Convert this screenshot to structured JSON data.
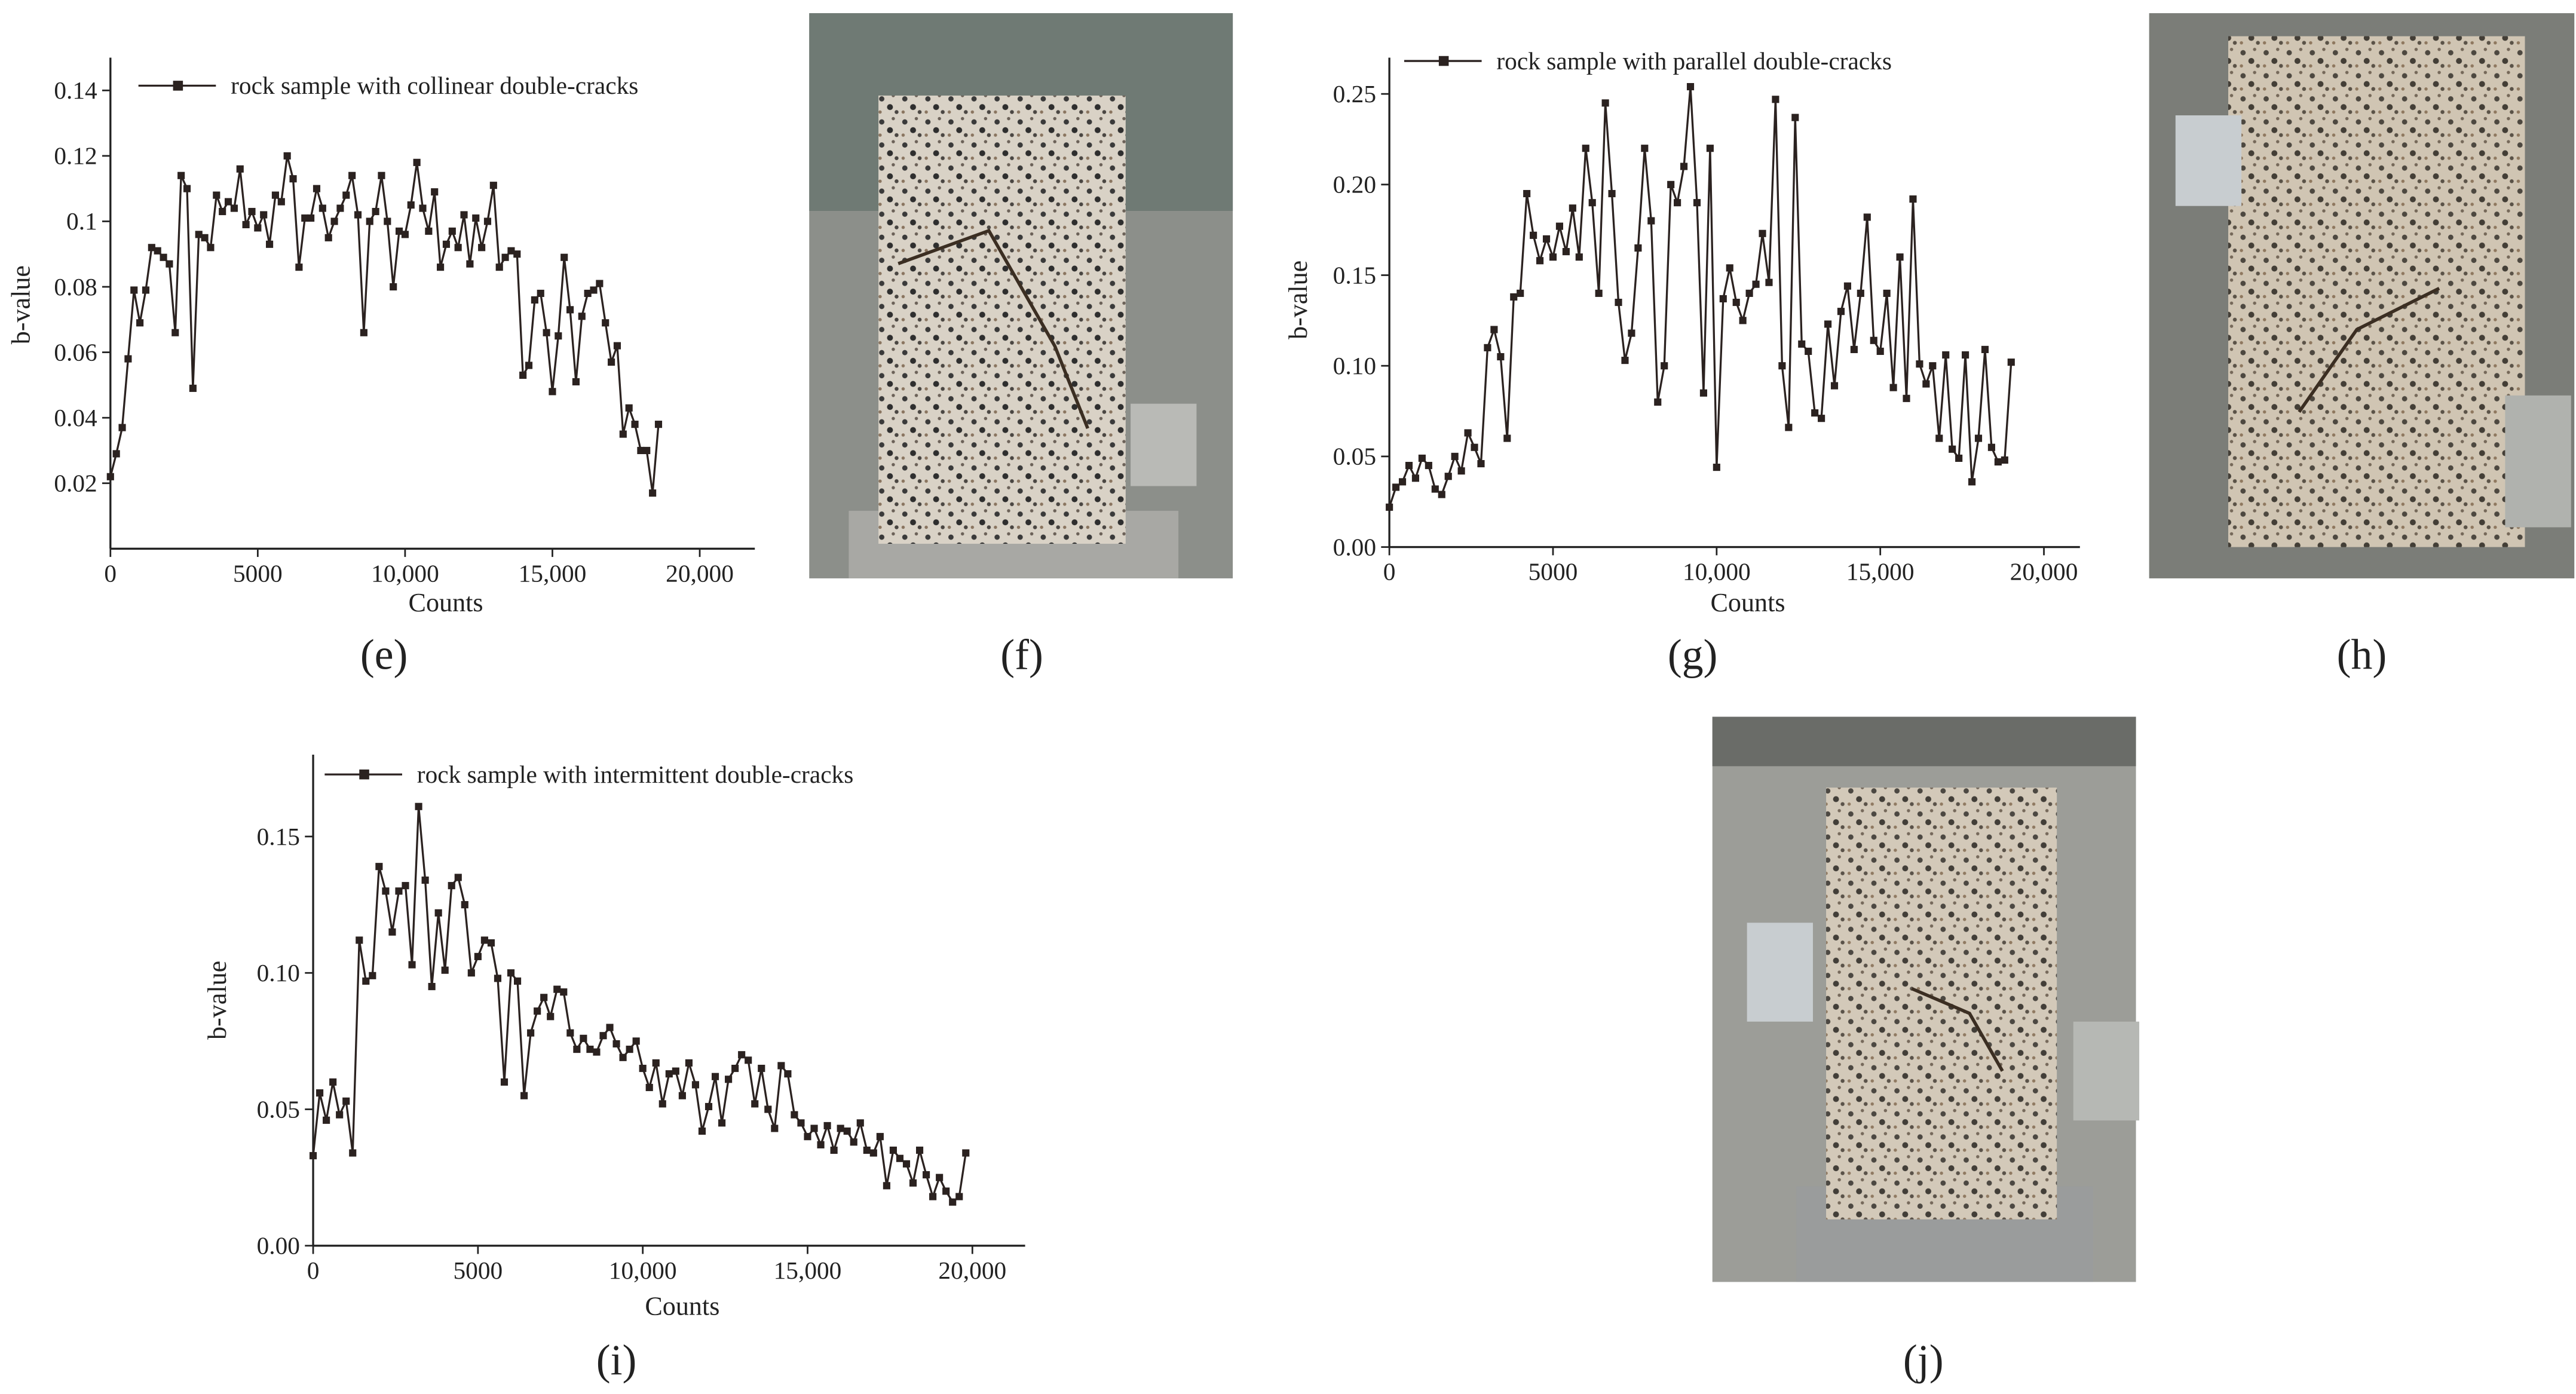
{
  "chart_data": [
    {
      "type": "line",
      "label": "(e)",
      "xlabel": "Counts",
      "ylabel": "b-value",
      "x": [
        0,
        200,
        400,
        600,
        800,
        1000,
        1200,
        1400,
        1600,
        1800,
        2000,
        2200,
        2400,
        2600,
        2800,
        3000,
        3200,
        3400,
        3600,
        3800,
        4000,
        4200,
        4400,
        4600,
        4800,
        5000,
        5200,
        5400,
        5600,
        5800,
        6000,
        6200,
        6400,
        6600,
        6800,
        7000,
        7200,
        7400,
        7600,
        7800,
        8000,
        8200,
        8400,
        8600,
        8800,
        9000,
        9200,
        9400,
        9600,
        9800,
        10000,
        10200,
        10400,
        10600,
        10800,
        11000,
        11200,
        11400,
        11600,
        11800,
        12000,
        12200,
        12400,
        12600,
        12800,
        13000,
        13200,
        13400,
        13600,
        13800,
        14000,
        14200,
        14400,
        14600,
        14800,
        15000,
        15200,
        15400,
        15600,
        15800,
        16000,
        16200,
        16400,
        16600,
        16800,
        17000,
        17200,
        17400,
        17600,
        17800,
        18000,
        18200,
        18400,
        18600
      ],
      "series": [
        {
          "name": "rock sample with collinear double-cracks",
          "color": "#2b2220",
          "values": [
            0.022,
            0.029,
            0.037,
            0.058,
            0.079,
            0.069,
            0.079,
            0.092,
            0.091,
            0.089,
            0.087,
            0.066,
            0.114,
            0.11,
            0.049,
            0.096,
            0.095,
            0.092,
            0.108,
            0.103,
            0.106,
            0.104,
            0.116,
            0.099,
            0.103,
            0.098,
            0.102,
            0.093,
            0.108,
            0.106,
            0.12,
            0.113,
            0.086,
            0.101,
            0.101,
            0.11,
            0.104,
            0.095,
            0.1,
            0.104,
            0.108,
            0.114,
            0.102,
            0.066,
            0.1,
            0.103,
            0.114,
            0.1,
            0.08,
            0.097,
            0.096,
            0.105,
            0.118,
            0.104,
            0.097,
            0.109,
            0.086,
            0.093,
            0.097,
            0.092,
            0.102,
            0.087,
            0.101,
            0.092,
            0.1,
            0.111,
            0.086,
            0.089,
            0.091,
            0.09,
            0.053,
            0.056,
            0.076,
            0.078,
            0.066,
            0.048,
            0.065,
            0.089,
            0.073,
            0.051,
            0.071,
            0.078,
            0.079,
            0.081,
            0.069,
            0.057,
            0.062,
            0.035,
            0.043,
            0.038,
            0.03,
            0.03,
            0.017,
            0.038
          ]
        }
      ],
      "xlim": [
        0,
        21870
      ],
      "xticks": [
        0,
        5000,
        {
          "value": 10000,
          "label": "10,000"
        },
        {
          "value": 15000,
          "label": "15,000"
        },
        {
          "value": 20000,
          "label": "20,000"
        }
      ],
      "ylim": [
        0,
        0.15
      ],
      "yticks": [
        0.02,
        0.04,
        0.06,
        0.08,
        0.1,
        0.12,
        0.14
      ],
      "legend": "top-left"
    },
    {
      "type": "line",
      "label": "(g)",
      "xlabel": "Counts",
      "ylabel": "b-value",
      "x": [
        0,
        200,
        400,
        600,
        800,
        1000,
        1200,
        1400,
        1600,
        1800,
        2000,
        2200,
        2400,
        2600,
        2800,
        3000,
        3200,
        3400,
        3600,
        3800,
        4000,
        4200,
        4400,
        4600,
        4800,
        5000,
        5200,
        5400,
        5600,
        5800,
        6000,
        6200,
        6400,
        6600,
        6800,
        7000,
        7200,
        7400,
        7600,
        7800,
        8000,
        8200,
        8400,
        8600,
        8800,
        9000,
        9200,
        9400,
        9600,
        9800,
        10000,
        10200,
        10400,
        10600,
        10800,
        11000,
        11200,
        11400,
        11600,
        11800,
        12000,
        12200,
        12400,
        12600,
        12800,
        13000,
        13200,
        13400,
        13600,
        13800,
        14000,
        14200,
        14400,
        14600,
        14800,
        15000,
        15200,
        15400,
        15600,
        15800,
        16000,
        16200,
        16400,
        16600,
        16800,
        17000,
        17200,
        17400,
        17600,
        17800,
        18000,
        18200,
        18400,
        18600,
        18800,
        19000
      ],
      "series": [
        {
          "name": "rock sample with parallel double-cracks",
          "color": "#2b2220",
          "values": [
            0.022,
            0.033,
            0.036,
            0.045,
            0.038,
            0.049,
            0.045,
            0.032,
            0.029,
            0.039,
            0.05,
            0.042,
            0.063,
            0.055,
            0.046,
            0.11,
            0.12,
            0.105,
            0.06,
            0.138,
            0.14,
            0.195,
            0.172,
            0.158,
            0.17,
            0.16,
            0.177,
            0.163,
            0.187,
            0.16,
            0.22,
            0.19,
            0.14,
            0.245,
            0.195,
            0.135,
            0.103,
            0.118,
            0.165,
            0.22,
            0.18,
            0.08,
            0.1,
            0.2,
            0.19,
            0.21,
            0.254,
            0.19,
            0.085,
            0.22,
            0.044,
            0.137,
            0.154,
            0.135,
            0.125,
            0.14,
            0.145,
            0.173,
            0.146,
            0.247,
            0.1,
            0.066,
            0.237,
            0.112,
            0.108,
            0.074,
            0.071,
            0.123,
            0.089,
            0.13,
            0.144,
            0.109,
            0.14,
            0.182,
            0.114,
            0.108,
            0.14,
            0.088,
            0.16,
            0.082,
            0.192,
            0.101,
            0.09,
            0.1,
            0.06,
            0.106,
            0.054,
            0.049,
            0.106,
            0.036,
            0.06,
            0.109,
            0.055,
            0.047,
            0.048,
            0.102
          ]
        }
      ],
      "xlim": [
        0,
        21100
      ],
      "xticks": [
        0,
        5000,
        {
          "value": 10000,
          "label": "10,000"
        },
        {
          "value": 15000,
          "label": "15,000"
        },
        {
          "value": 20000,
          "label": "20,000"
        }
      ],
      "ylim": [
        0,
        0.27
      ],
      "yticks": [
        {
          "value": 0,
          "label": "0.00"
        },
        0.05,
        {
          "value": 0.1,
          "label": "0.10"
        },
        0.15,
        {
          "value": 0.2,
          "label": "0.20"
        },
        0.25
      ],
      "legend": "top-left"
    },
    {
      "type": "line",
      "label": "(i)",
      "xlabel": "Counts",
      "ylabel": "b-value",
      "x": [
        0,
        200,
        400,
        600,
        800,
        1000,
        1200,
        1400,
        1600,
        1800,
        2000,
        2200,
        2400,
        2600,
        2800,
        3000,
        3200,
        3400,
        3600,
        3800,
        4000,
        4200,
        4400,
        4600,
        4800,
        5000,
        5200,
        5400,
        5600,
        5800,
        6000,
        6200,
        6400,
        6600,
        6800,
        7000,
        7200,
        7400,
        7600,
        7800,
        8000,
        8200,
        8400,
        8600,
        8800,
        9000,
        9200,
        9400,
        9600,
        9800,
        10000,
        10200,
        10400,
        10600,
        10800,
        11000,
        11200,
        11400,
        11600,
        11800,
        12000,
        12200,
        12400,
        12600,
        12800,
        13000,
        13200,
        13400,
        13600,
        13800,
        14000,
        14200,
        14400,
        14600,
        14800,
        15000,
        15200,
        15400,
        15600,
        15800,
        16000,
        16200,
        16400,
        16600,
        16800,
        17000,
        17200,
        17400,
        17600,
        17800,
        18000,
        18200,
        18400,
        18600,
        18800,
        19000,
        19200,
        19400,
        19600,
        19800
      ],
      "series": [
        {
          "name": "rock sample with intermittent double-cracks",
          "color": "#2b2220",
          "values": [
            0.033,
            0.056,
            0.046,
            0.06,
            0.048,
            0.053,
            0.034,
            0.112,
            0.097,
            0.099,
            0.139,
            0.13,
            0.115,
            0.13,
            0.132,
            0.103,
            0.161,
            0.134,
            0.095,
            0.122,
            0.101,
            0.132,
            0.135,
            0.125,
            0.1,
            0.106,
            0.112,
            0.111,
            0.098,
            0.06,
            0.1,
            0.097,
            0.055,
            0.078,
            0.086,
            0.091,
            0.084,
            0.094,
            0.093,
            0.078,
            0.072,
            0.076,
            0.072,
            0.071,
            0.077,
            0.08,
            0.074,
            0.069,
            0.072,
            0.075,
            0.065,
            0.058,
            0.067,
            0.052,
            0.063,
            0.064,
            0.055,
            0.067,
            0.059,
            0.042,
            0.051,
            0.062,
            0.045,
            0.061,
            0.065,
            0.07,
            0.068,
            0.052,
            0.065,
            0.05,
            0.043,
            0.066,
            0.063,
            0.048,
            0.045,
            0.04,
            0.043,
            0.037,
            0.044,
            0.035,
            0.043,
            0.042,
            0.038,
            0.045,
            0.035,
            0.034,
            0.04,
            0.022,
            0.035,
            0.032,
            0.03,
            0.023,
            0.035,
            0.026,
            0.018,
            0.025,
            0.02,
            0.016,
            0.018,
            0.034
          ]
        }
      ],
      "xlim": [
        0,
        21600
      ],
      "xticks": [
        0,
        5000,
        {
          "value": 10000,
          "label": "10,000"
        },
        {
          "value": 15000,
          "label": "15,000"
        },
        {
          "value": 20000,
          "label": "20,000"
        }
      ],
      "ylim": [
        0,
        0.18
      ],
      "yticks": [
        {
          "value": 0,
          "label": "0.00"
        },
        0.05,
        {
          "value": 0.1,
          "label": "0.10"
        },
        0.15
      ],
      "legend": "top-left"
    }
  ],
  "figures": [
    {
      "label": "(f)"
    },
    {
      "label": "(h)"
    },
    {
      "label": "(j)"
    }
  ]
}
